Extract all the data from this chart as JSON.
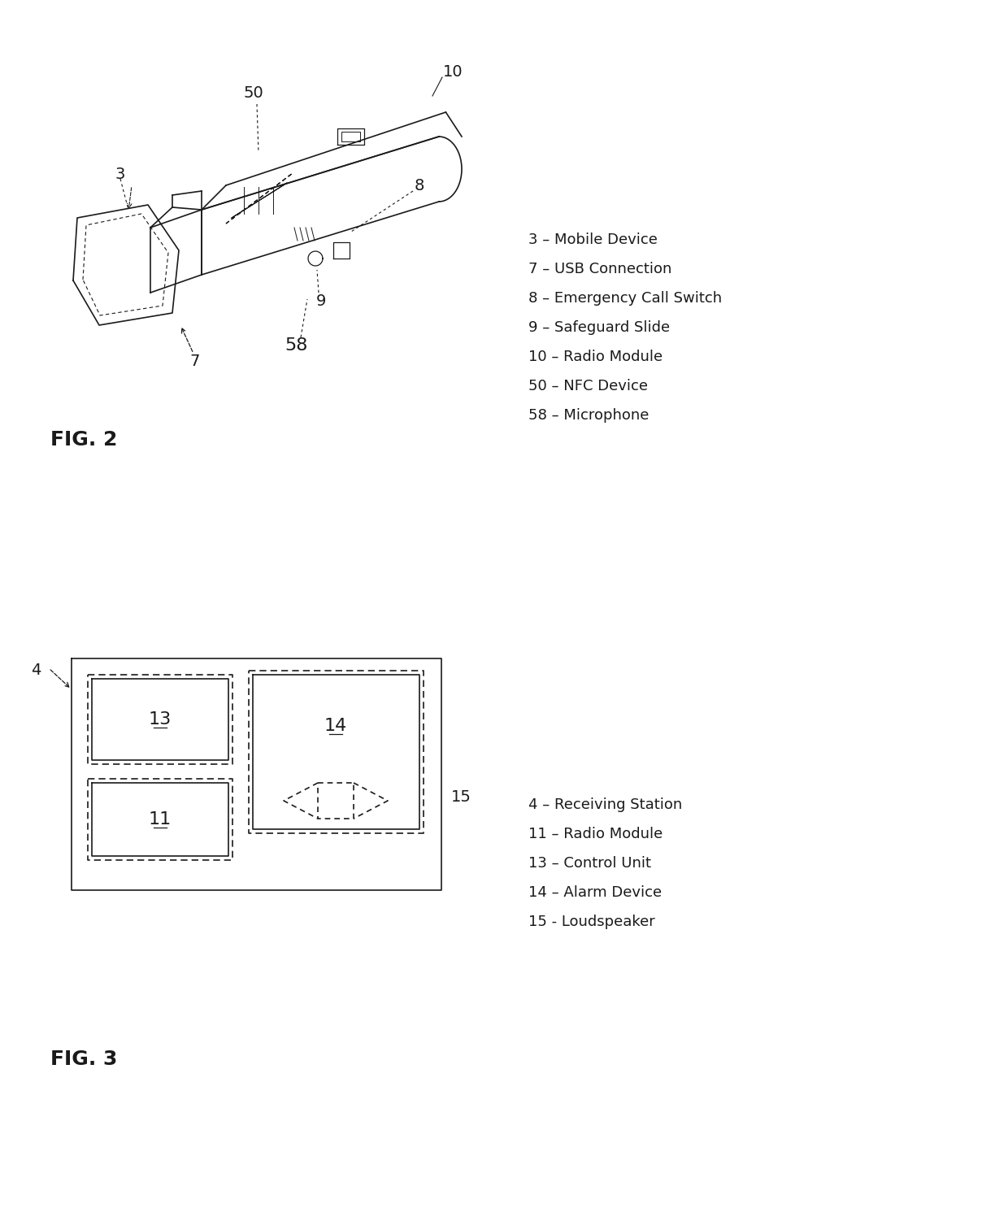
{
  "bg_color": "#ffffff",
  "fig2_legend": [
    "3 – Mobile Device",
    "7 – USB Connection",
    "8 – Emergency Call Switch",
    "9 – Safeguard Slide",
    "10 – Radio Module",
    "50 – NFC Device",
    "58 – Microphone"
  ],
  "fig3_legend": [
    "4 – Receiving Station",
    "11 – Radio Module",
    "13 – Control Unit",
    "14 – Alarm Device",
    "15 - Loudspeaker"
  ],
  "fig2_label": "FIG. 2",
  "fig3_label": "FIG. 3",
  "label_fontsize": 14,
  "legend_fontsize": 13,
  "figcaption_fontsize": 18
}
